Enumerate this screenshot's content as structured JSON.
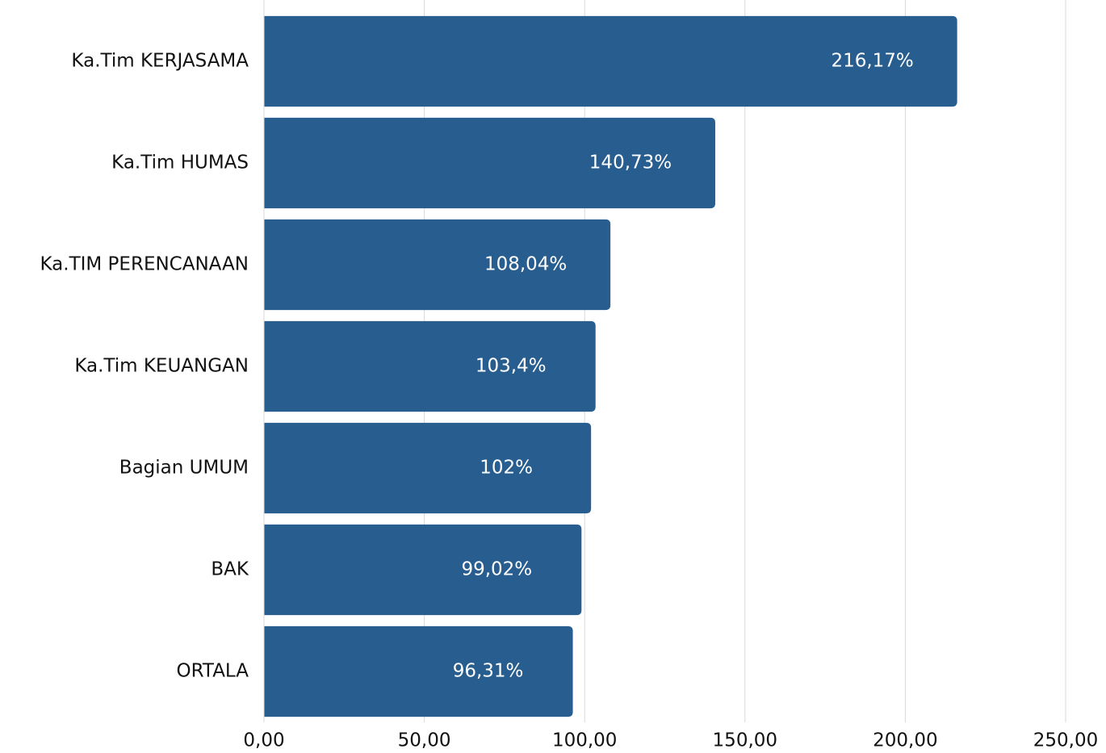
{
  "chart_data": {
    "type": "bar",
    "orientation": "horizontal",
    "categories": [
      "Ka.Tim KERJASAMA",
      "Ka.Tim HUMAS",
      "Ka.TIM PERENCANAAN",
      "Ka.Tim KEUANGAN",
      "Bagian UMUM",
      "BAK",
      "ORTALA"
    ],
    "values": [
      216.17,
      140.73,
      108.04,
      103.4,
      102,
      99.02,
      96.31
    ],
    "value_labels": [
      "216,17%",
      "140,73%",
      "108,04%",
      "103,4%",
      "102%",
      "99,02%",
      "96,31%"
    ],
    "color": "#285d8f",
    "xlim": [
      0,
      250
    ],
    "xticks": [
      {
        "value": 0,
        "label": "0,00"
      },
      {
        "value": 50,
        "label": "50,00"
      },
      {
        "value": 100,
        "label": "100,00"
      },
      {
        "value": 150,
        "label": "150,00"
      },
      {
        "value": 200,
        "label": "200,00"
      },
      {
        "value": 250,
        "label": "250,00"
      }
    ],
    "grid": true
  }
}
